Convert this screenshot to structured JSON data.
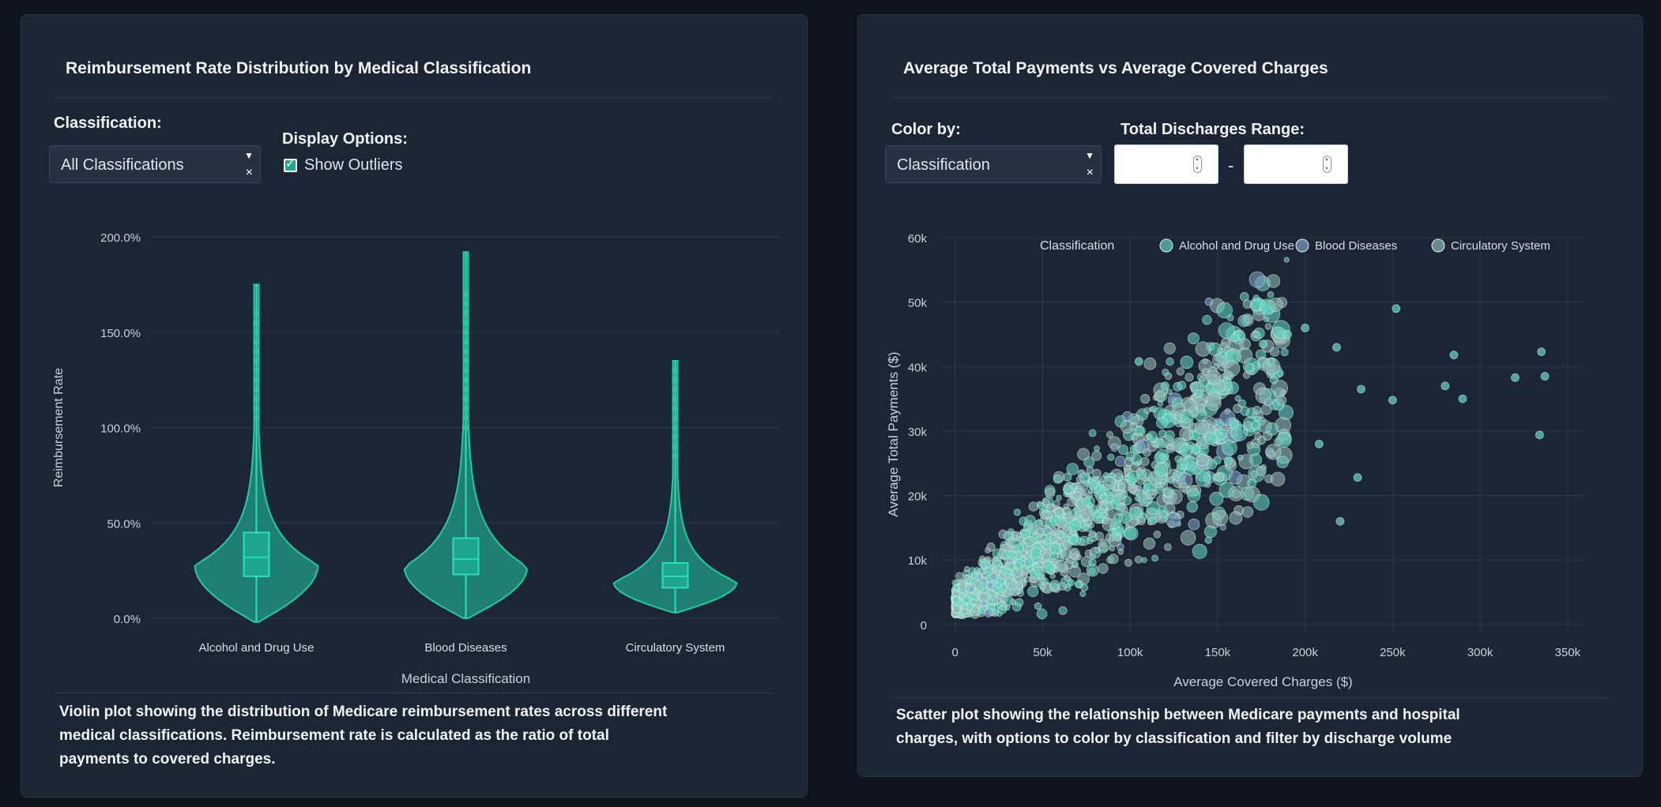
{
  "left_panel": {
    "title": "Reimbursement Rate Distribution by Medical Classification",
    "classification_label": "Classification:",
    "classification_value": "All Classifications",
    "display_label": "Display Options:",
    "show_outliers_label": "Show Outliers",
    "show_outliers_checked": true,
    "caption_lines": [
      "Violin plot showing the distribution of Medicare reimbursement rates across different",
      "medical classifications. Reimbursement rate is calculated as the ratio of total",
      "payments to covered charges."
    ]
  },
  "right_panel": {
    "title": "Average Total Payments vs Average Covered Charges",
    "color_by_label": "Color by:",
    "color_by_value": "Classification",
    "range_label": "Total Discharges Range:",
    "range_separator": "-",
    "range_min_value": "",
    "range_max_value": "",
    "caption_lines": [
      "Scatter plot showing the relationship between Medicare payments and hospital",
      "charges, with options to color by classification and filter by discharge volume"
    ]
  },
  "chart_data": [
    {
      "type": "violin",
      "title": "",
      "xlabel": "Medical Classification",
      "ylabel": "Reimbursement Rate",
      "y_tick_labels": [
        "0.0%",
        "50.0%",
        "100.0%",
        "150.0%",
        "200.0%"
      ],
      "ylim": [
        0,
        2.0
      ],
      "categories": [
        "Alcohol and Drug Use",
        "Blood Diseases",
        "Circulatory System"
      ],
      "color": "#1fcca6",
      "series": [
        {
          "category": "Alcohol and Drug Use",
          "min": -0.02,
          "q1": 0.22,
          "median": 0.32,
          "q3": 0.45,
          "max": 1.75,
          "mode": 0.28,
          "outliers": [
            1.05,
            1.1,
            1.15,
            1.2,
            1.25,
            1.3,
            1.35,
            1.4,
            1.45,
            1.5,
            1.55,
            1.6
          ]
        },
        {
          "category": "Blood Diseases",
          "min": 0.0,
          "q1": 0.23,
          "median": 0.31,
          "q3": 0.42,
          "max": 1.92,
          "mode": 0.27,
          "outliers": [
            1.0,
            1.05,
            1.1,
            1.15,
            1.2,
            1.25,
            1.3,
            1.35,
            1.4,
            1.45,
            1.5,
            1.55,
            1.6,
            1.65,
            1.7
          ]
        },
        {
          "category": "Circulatory System",
          "min": 0.03,
          "q1": 0.16,
          "median": 0.22,
          "q3": 0.29,
          "max": 1.35,
          "mode": 0.19,
          "outliers": [
            0.85,
            0.9,
            0.95,
            1.0,
            1.05,
            1.1,
            1.15,
            1.2,
            1.25,
            1.3
          ]
        }
      ]
    },
    {
      "type": "scatter",
      "title": "",
      "xlabel": "Average Covered Charges ($)",
      "ylabel": "Average Total Payments ($)",
      "xlim": [
        -8000,
        360000
      ],
      "ylim": [
        -1000,
        60000
      ],
      "x_ticks": [
        0,
        50000,
        100000,
        150000,
        200000,
        250000,
        300000,
        350000
      ],
      "x_tick_labels": [
        "0",
        "50k",
        "100k",
        "150k",
        "200k",
        "250k",
        "300k",
        "350k"
      ],
      "y_ticks": [
        0,
        10000,
        20000,
        30000,
        40000,
        50000,
        60000
      ],
      "y_tick_labels": [
        "0",
        "10k",
        "20k",
        "30k",
        "40k",
        "50k",
        "60k"
      ],
      "legend_title": "Classification",
      "legend_position": "top",
      "series": [
        {
          "name": "Alcohol and Drug Use",
          "color": "#5fd0bd"
        },
        {
          "name": "Blood Diseases",
          "color": "#7c9fc4"
        },
        {
          "name": "Circulatory System",
          "color": "#8fb8b0"
        }
      ],
      "highlight_points": [
        [
          252000,
          49000
        ],
        [
          200000,
          46000
        ],
        [
          285000,
          41800
        ],
        [
          335000,
          42300
        ],
        [
          320000,
          38300
        ],
        [
          337000,
          38500
        ],
        [
          280000,
          37000
        ],
        [
          290000,
          35000
        ],
        [
          232000,
          36500
        ],
        [
          218000,
          43000
        ],
        [
          250000,
          34800
        ],
        [
          334000,
          29400
        ],
        [
          190000,
          45000
        ],
        [
          160000,
          44500
        ],
        [
          176000,
          43500
        ],
        [
          230000,
          22800
        ],
        [
          220000,
          16000
        ],
        [
          208000,
          28000
        ],
        [
          120000,
          37000
        ],
        [
          105000,
          40800
        ]
      ]
    }
  ]
}
